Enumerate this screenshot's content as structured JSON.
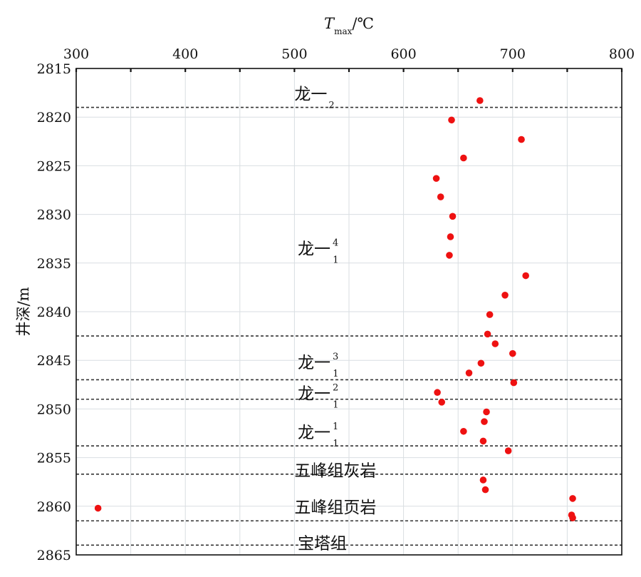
{
  "chart_data": {
    "type": "scatter",
    "title": "",
    "xlabel": {
      "symbol": "T",
      "subscript": "max",
      "unit": "/℃"
    },
    "ylabel": "井深/m",
    "xlim": [
      300,
      800
    ],
    "ylim": [
      2815,
      2865
    ],
    "y_inverted": true,
    "x_axis_position": "top",
    "x_ticks": [
      300,
      400,
      500,
      600,
      700,
      800
    ],
    "y_ticks": [
      2815,
      2820,
      2825,
      2830,
      2835,
      2840,
      2845,
      2850,
      2855,
      2860,
      2865
    ],
    "x_minor_ticks": [
      350,
      450,
      550,
      650,
      750
    ],
    "grid": true,
    "marker_color": "#ee1111",
    "points": [
      {
        "x": 670,
        "y": 2818.3
      },
      {
        "x": 644,
        "y": 2820.3
      },
      {
        "x": 708,
        "y": 2822.3
      },
      {
        "x": 655,
        "y": 2824.2
      },
      {
        "x": 630,
        "y": 2826.3
      },
      {
        "x": 634,
        "y": 2828.2
      },
      {
        "x": 645,
        "y": 2830.2
      },
      {
        "x": 643,
        "y": 2832.3
      },
      {
        "x": 642,
        "y": 2834.2
      },
      {
        "x": 712,
        "y": 2836.3
      },
      {
        "x": 693,
        "y": 2838.3
      },
      {
        "x": 679,
        "y": 2840.3
      },
      {
        "x": 677,
        "y": 2842.3
      },
      {
        "x": 684,
        "y": 2843.3
      },
      {
        "x": 700,
        "y": 2844.3
      },
      {
        "x": 671,
        "y": 2845.3
      },
      {
        "x": 660,
        "y": 2846.3
      },
      {
        "x": 701,
        "y": 2847.3
      },
      {
        "x": 631,
        "y": 2848.3
      },
      {
        "x": 635,
        "y": 2849.3
      },
      {
        "x": 676,
        "y": 2850.3
      },
      {
        "x": 674,
        "y": 2851.3
      },
      {
        "x": 655,
        "y": 2852.3
      },
      {
        "x": 673,
        "y": 2853.3
      },
      {
        "x": 696,
        "y": 2854.3
      },
      {
        "x": 673,
        "y": 2857.3
      },
      {
        "x": 675,
        "y": 2858.3
      },
      {
        "x": 320,
        "y": 2860.2
      },
      {
        "x": 755,
        "y": 2859.2
      },
      {
        "x": 754,
        "y": 2860.9
      },
      {
        "x": 755,
        "y": 2861.2
      }
    ],
    "boundaries": [
      2819,
      2842.5,
      2847,
      2849,
      2853.8,
      2856.7,
      2861.5,
      2864
    ],
    "zones": [
      {
        "label": "龙一",
        "sub": "2",
        "sup": "",
        "x": 500,
        "y": 2817.6
      },
      {
        "label": "龙一",
        "sub": "1",
        "sup": "4",
        "x": 503,
        "y": 2833.5
      },
      {
        "label": "龙一",
        "sub": "1",
        "sup": "3",
        "x": 503,
        "y": 2845.2
      },
      {
        "label": "龙一",
        "sub": "1",
        "sup": "2",
        "x": 503,
        "y": 2848.4
      },
      {
        "label": "龙一",
        "sub": "1",
        "sup": "1",
        "x": 503,
        "y": 2852.4
      },
      {
        "label": "五峰组灰岩",
        "sub": "",
        "sup": "",
        "x": 500,
        "y": 2856.3
      },
      {
        "label": "五峰组页岩",
        "sub": "",
        "sup": "",
        "x": 500,
        "y": 2860.1
      },
      {
        "label": "宝塔组",
        "sub": "",
        "sup": "",
        "x": 503,
        "y": 2863.8
      }
    ]
  }
}
